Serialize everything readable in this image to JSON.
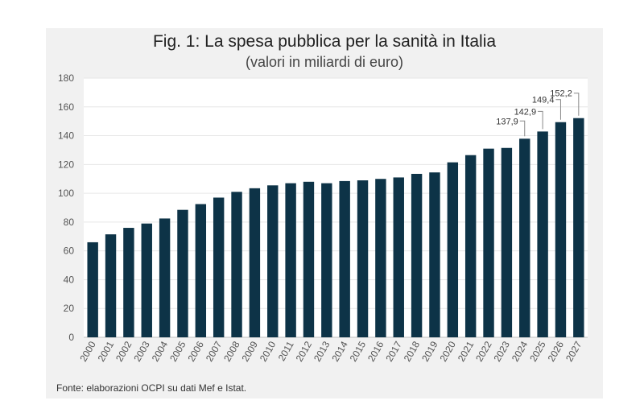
{
  "chart_data": {
    "type": "bar",
    "title": "Fig. 1: La spesa pubblica per la sanità in Italia",
    "subtitle": "(valori in miliardi di euro)",
    "xlabel": "",
    "ylabel": "",
    "ylim": [
      0,
      180
    ],
    "yticks": [
      "0",
      "20",
      "40",
      "60",
      "80",
      "100",
      "120",
      "140",
      "160",
      "180"
    ],
    "grid": true,
    "legend": "none",
    "bar_color": "#0d3347",
    "categories": [
      "2000",
      "2001",
      "2002",
      "2003",
      "2004",
      "2005",
      "2006",
      "2007",
      "2008",
      "2009",
      "2010",
      "2011",
      "2012",
      "2013",
      "2014",
      "2015",
      "2016",
      "2017",
      "2018",
      "2019",
      "2020",
      "2021",
      "2022",
      "2023",
      "2024",
      "2025",
      "2026",
      "2027"
    ],
    "values": [
      66,
      71.5,
      76,
      79,
      82.5,
      88.5,
      92.5,
      97,
      101,
      103.5,
      105.5,
      107,
      108,
      107,
      108.5,
      109,
      110,
      111,
      113.5,
      114.5,
      121.5,
      126.5,
      131,
      131.5,
      137.9,
      142.9,
      149.4,
      152.2
    ],
    "data_labels": [
      {
        "category": "2024",
        "text": "137,9"
      },
      {
        "category": "2025",
        "text": "142,9"
      },
      {
        "category": "2026",
        "text": "149,4"
      },
      {
        "category": "2027",
        "text": "152,2"
      }
    ]
  },
  "source": "Fonte: elaborazioni OCPI su dati Mef e Istat."
}
